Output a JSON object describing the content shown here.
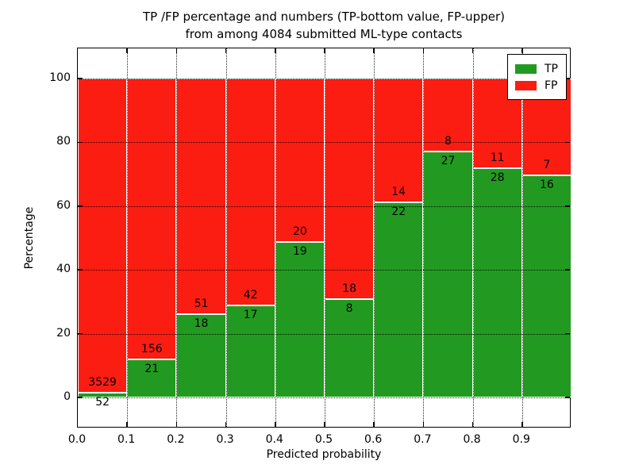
{
  "figure": {
    "title_line1": "TP /FP percentage and numbers (TP-bottom value, FP-upper)",
    "title_line2": "from among 4084 submitted ML-type contacts",
    "xlabel": "Predicted probability",
    "ylabel": "Percentage"
  },
  "legend": {
    "items": [
      {
        "label": "TP",
        "color": "#229a21"
      },
      {
        "label": "FP",
        "color": "#fb1d12"
      }
    ]
  },
  "chart_data": {
    "type": "bar",
    "subtype": "stacked-percentage",
    "title": "TP /FP percentage and numbers (TP-bottom value, FP-upper) from among 4084 submitted ML-type contacts",
    "xlabel": "Predicted probability",
    "ylabel": "Percentage",
    "grid": true,
    "legend_position": "upper right",
    "xlim": [
      0.0,
      1.0
    ],
    "ylim": [
      -10,
      110
    ],
    "x_tick_labels": [
      "0.0",
      "0.1",
      "0.2",
      "0.3",
      "0.4",
      "0.5",
      "0.6",
      "0.7",
      "0.8",
      "0.9"
    ],
    "y_ticks": [
      0,
      20,
      40,
      60,
      80,
      100
    ],
    "y_tick_labels": [
      "0",
      "20",
      "40",
      "60",
      "80",
      "100"
    ],
    "categories": [
      "0.0-0.1",
      "0.1-0.2",
      "0.2-0.3",
      "0.3-0.4",
      "0.4-0.5",
      "0.5-0.6",
      "0.6-0.7",
      "0.7-0.8",
      "0.8-0.9",
      "0.9-1.0"
    ],
    "series": [
      {
        "name": "TP",
        "color": "#229a21",
        "counts": [
          52,
          21,
          18,
          17,
          19,
          8,
          22,
          27,
          28,
          16
        ]
      },
      {
        "name": "FP",
        "color": "#fb1d12",
        "counts": [
          3529,
          156,
          51,
          42,
          20,
          18,
          14,
          8,
          11,
          7
        ]
      }
    ],
    "bar_value_labels_note": "TP count printed at top of green segment, FP count printed just above segment boundary",
    "total_contacts_in_title": 4084
  }
}
